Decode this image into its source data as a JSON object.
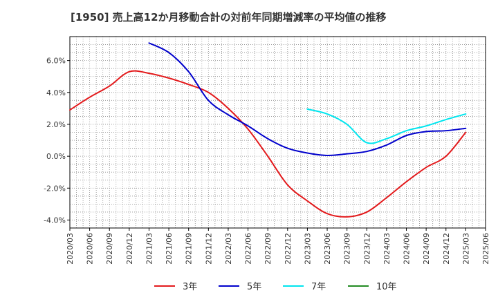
{
  "chart_data": {
    "type": "line",
    "title": "[1950]  売上高12か月移動合計の対前年同期増減率の平均値の推移",
    "xlabel": "",
    "ylabel": "",
    "ylim": [
      -4.5,
      7.5
    ],
    "yticks": [
      -4.0,
      -2.0,
      0.0,
      2.0,
      4.0,
      6.0
    ],
    "ytick_labels": [
      "-4.0%",
      "-2.0%",
      "0.0%",
      "2.0%",
      "4.0%",
      "6.0%"
    ],
    "x_categories": [
      "2020/03",
      "2020/06",
      "2020/09",
      "2020/12",
      "2021/03",
      "2021/06",
      "2021/09",
      "2021/12",
      "2022/03",
      "2022/06",
      "2022/09",
      "2022/12",
      "2023/03",
      "2023/06",
      "2023/09",
      "2023/12",
      "2024/03",
      "2024/06",
      "2024/09",
      "2024/12",
      "2025/03",
      "2025/06"
    ],
    "grid": true,
    "legend_position": "bottom",
    "series": [
      {
        "name": "3年",
        "color": "#e31a1c",
        "values": [
          2.9,
          3.7,
          4.4,
          5.3,
          5.2,
          4.9,
          4.5,
          4.0,
          3.0,
          1.7,
          0.0,
          -1.8,
          -2.8,
          -3.6,
          -3.8,
          -3.5,
          -2.6,
          -1.6,
          -0.7,
          0.0,
          1.5,
          null
        ]
      },
      {
        "name": "5年",
        "color": "#0000cc",
        "values": [
          null,
          null,
          null,
          null,
          7.1,
          6.5,
          5.3,
          3.5,
          2.6,
          1.9,
          1.1,
          0.5,
          0.2,
          0.05,
          0.15,
          0.3,
          0.7,
          1.3,
          1.55,
          1.6,
          1.75,
          null
        ]
      },
      {
        "name": "7年",
        "color": "#00e5ee",
        "values": [
          null,
          null,
          null,
          null,
          null,
          null,
          null,
          null,
          null,
          null,
          null,
          null,
          2.95,
          2.65,
          2.0,
          0.85,
          1.1,
          1.6,
          1.9,
          2.3,
          2.65,
          null
        ]
      },
      {
        "name": "10年",
        "color": "#228b22",
        "values": [
          null,
          null,
          null,
          null,
          null,
          null,
          null,
          null,
          null,
          null,
          null,
          null,
          null,
          null,
          null,
          null,
          null,
          null,
          null,
          null,
          null,
          null
        ]
      }
    ]
  }
}
